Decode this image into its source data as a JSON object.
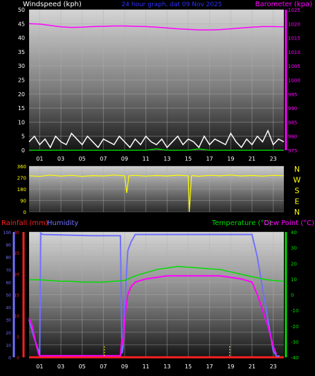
{
  "colors": {
    "background": "#000000",
    "wind": "#ffffff",
    "gust": "#00cc00",
    "barometer": "#ff00ff",
    "direction": "#ffff00",
    "rain": "#ff2020",
    "humidity": "#7070ff",
    "temperature": "#00dd00",
    "dewpoint": "#ff00ff",
    "title": "#3030ff",
    "grid": "#b0b0b0",
    "rain_tick": "#ffff00"
  },
  "chart_data": [
    {
      "type": "line",
      "title": "24 hour graph, dat  09 Nov 2025",
      "left_axis_label": "Windspeed (kph)",
      "right_axis_label": "Barometer (kpa)",
      "x_ticks": [
        "01",
        "03",
        "05",
        "07",
        "09",
        "11",
        "13",
        "15",
        "17",
        "19",
        "21",
        "23"
      ],
      "y_left": {
        "min": 0,
        "max": 50,
        "ticks": [
          0,
          5,
          10,
          15,
          20,
          25,
          30,
          35,
          40,
          45,
          50
        ]
      },
      "y_right": {
        "min": 975,
        "max": 1025,
        "ticks": [
          975,
          980,
          985,
          990,
          995,
          1000,
          1005,
          1010,
          1015,
          1020,
          1025
        ]
      },
      "series": [
        {
          "role": "barometer",
          "axis": "right",
          "x": [
            0,
            1,
            2,
            3,
            4,
            5,
            6,
            7,
            8,
            9,
            10,
            11,
            12,
            13,
            14,
            15,
            16,
            17,
            18,
            19,
            20,
            21,
            22,
            23,
            24
          ],
          "values": [
            1020.0,
            1019.9,
            1019.4,
            1018.9,
            1018.7,
            1018.8,
            1019.0,
            1019.1,
            1019.2,
            1019.2,
            1019.1,
            1019.0,
            1018.8,
            1018.5,
            1018.2,
            1018.0,
            1017.8,
            1017.8,
            1017.9,
            1018.2,
            1018.5,
            1018.8,
            1019.0,
            1019.0,
            1018.9
          ]
        },
        {
          "role": "wind",
          "axis": "left",
          "x": [
            0,
            0.5,
            1,
            1.5,
            2,
            2.5,
            3,
            3.5,
            4,
            4.5,
            5,
            5.5,
            6,
            6.5,
            7,
            7.5,
            8,
            8.5,
            9,
            9.5,
            10,
            10.5,
            11,
            11.5,
            12,
            12.5,
            13,
            13.5,
            14,
            14.5,
            15,
            15.5,
            16,
            16.5,
            17,
            17.5,
            18,
            18.5,
            19,
            19.5,
            20,
            20.5,
            21,
            21.5,
            22,
            22.5,
            23,
            23.5,
            24
          ],
          "values": [
            3,
            5,
            2,
            4,
            1,
            5,
            3,
            2,
            6,
            4,
            2,
            5,
            3,
            1,
            4,
            3,
            2,
            5,
            3,
            1,
            4,
            2,
            5,
            3,
            2,
            4,
            1,
            3,
            5,
            2,
            4,
            3,
            1,
            5,
            2,
            4,
            3,
            2,
            6,
            3,
            1,
            4,
            2,
            5,
            3,
            7,
            2,
            4,
            3
          ]
        },
        {
          "role": "gust",
          "axis": "left",
          "x": [
            0,
            1,
            2,
            3,
            4,
            5,
            6,
            7,
            8,
            9,
            10,
            11,
            12,
            13,
            14,
            15,
            16,
            17,
            18,
            19,
            20,
            21,
            22,
            23,
            24
          ],
          "values": [
            0,
            0,
            0,
            0,
            0,
            0,
            0,
            0,
            0,
            0,
            0,
            0,
            0.5,
            0,
            0,
            0,
            0.5,
            0,
            0,
            0,
            0,
            0,
            0,
            0,
            0
          ]
        }
      ]
    },
    {
      "type": "line",
      "left_ticks": [
        0,
        90,
        180,
        270,
        360
      ],
      "right_labels": [
        "N",
        "W",
        "S",
        "E",
        "N"
      ],
      "y_range": [
        0,
        360
      ],
      "series": [
        {
          "role": "direction",
          "x": [
            0,
            1,
            2,
            3,
            4,
            5,
            6,
            7,
            8,
            9,
            9.2,
            9.4,
            10,
            11,
            12,
            13,
            14,
            15,
            15.1,
            15.3,
            15.5,
            16,
            17,
            18,
            19,
            20,
            21,
            22,
            23,
            24
          ],
          "values": [
            285,
            280,
            290,
            282,
            288,
            280,
            286,
            283,
            290,
            285,
            150,
            284,
            288,
            282,
            287,
            283,
            289,
            284,
            0,
            284,
            286,
            281,
            288,
            284,
            290,
            283,
            287,
            282,
            288,
            285
          ]
        }
      ]
    },
    {
      "type": "line",
      "labels": {
        "rain": "Rainfall (mm)",
        "humidity": "Humidity",
        "temperature": "Temperature (°C)",
        "dewpoint": "Dew Point (°C)"
      },
      "x_ticks": [
        "01",
        "03",
        "05",
        "07",
        "09",
        "11",
        "13",
        "15",
        "17",
        "19",
        "21",
        "23"
      ],
      "y_rain": {
        "min": 0,
        "max": 30,
        "ticks": [
          0,
          5,
          10,
          15,
          20,
          25,
          30
        ]
      },
      "y_humidity": {
        "min": 0,
        "max": 100,
        "ticks": [
          0,
          10,
          20,
          30,
          40,
          50,
          60,
          70,
          80,
          90,
          100
        ]
      },
      "y_temp": {
        "min": -40,
        "max": 40,
        "ticks": [
          -40,
          -30,
          -20,
          -10,
          0,
          10,
          20,
          30,
          40
        ]
      },
      "rain_ticks_hours": [
        7.1,
        18.9
      ],
      "series": [
        {
          "role": "rain",
          "axis": "rain",
          "x": [
            0,
            24
          ],
          "values": [
            0,
            0
          ]
        },
        {
          "role": "humidity",
          "axis": "humidity",
          "x": [
            0,
            0.5,
            0.9,
            1.0,
            1.1,
            1.3,
            6,
            8.6,
            8.75,
            8.85,
            8.95,
            9.1,
            9.3,
            9.6,
            9.8,
            10,
            11,
            16,
            21,
            21.5,
            22,
            22.5,
            23,
            23.3,
            23.6
          ],
          "values": [
            30,
            15,
            5,
            1,
            99,
            98,
            97,
            97,
            3,
            8,
            30,
            55,
            85,
            92,
            95,
            98,
            98,
            98,
            98,
            80,
            55,
            30,
            5,
            1,
            1
          ]
        },
        {
          "role": "temperature",
          "axis": "temp",
          "x": [
            0,
            1,
            2,
            3,
            4,
            5,
            6,
            7,
            8,
            9,
            10,
            11,
            12,
            13,
            14,
            15,
            16,
            17,
            18,
            19,
            20,
            21,
            22,
            23,
            24
          ],
          "values": [
            9.5,
            9.5,
            9.0,
            8.5,
            8.5,
            8.0,
            8.0,
            8.0,
            8.5,
            9.0,
            12.0,
            14.0,
            16.0,
            17.0,
            18.0,
            17.5,
            17.0,
            16.5,
            16.0,
            14.5,
            13.0,
            11.5,
            10.0,
            9.0,
            8.5
          ]
        },
        {
          "role": "dewpoint",
          "axis": "temp",
          "x": [
            0,
            0.3,
            0.6,
            0.9,
            1.0,
            8.6,
            8.75,
            8.85,
            8.95,
            9.1,
            9.3,
            9.6,
            10,
            11,
            12,
            13,
            14,
            15,
            16,
            17,
            18,
            19,
            20,
            21,
            21.5,
            22,
            22.5,
            23,
            23.3
          ],
          "values": [
            -15,
            -20,
            -30,
            -38,
            -39,
            -39,
            -28,
            -32,
            -22,
            -10,
            0,
            5,
            8,
            10,
            11,
            12,
            12,
            12,
            12,
            12,
            12,
            11,
            10,
            8,
            0,
            -10,
            -20,
            -33,
            -38
          ]
        }
      ]
    }
  ]
}
